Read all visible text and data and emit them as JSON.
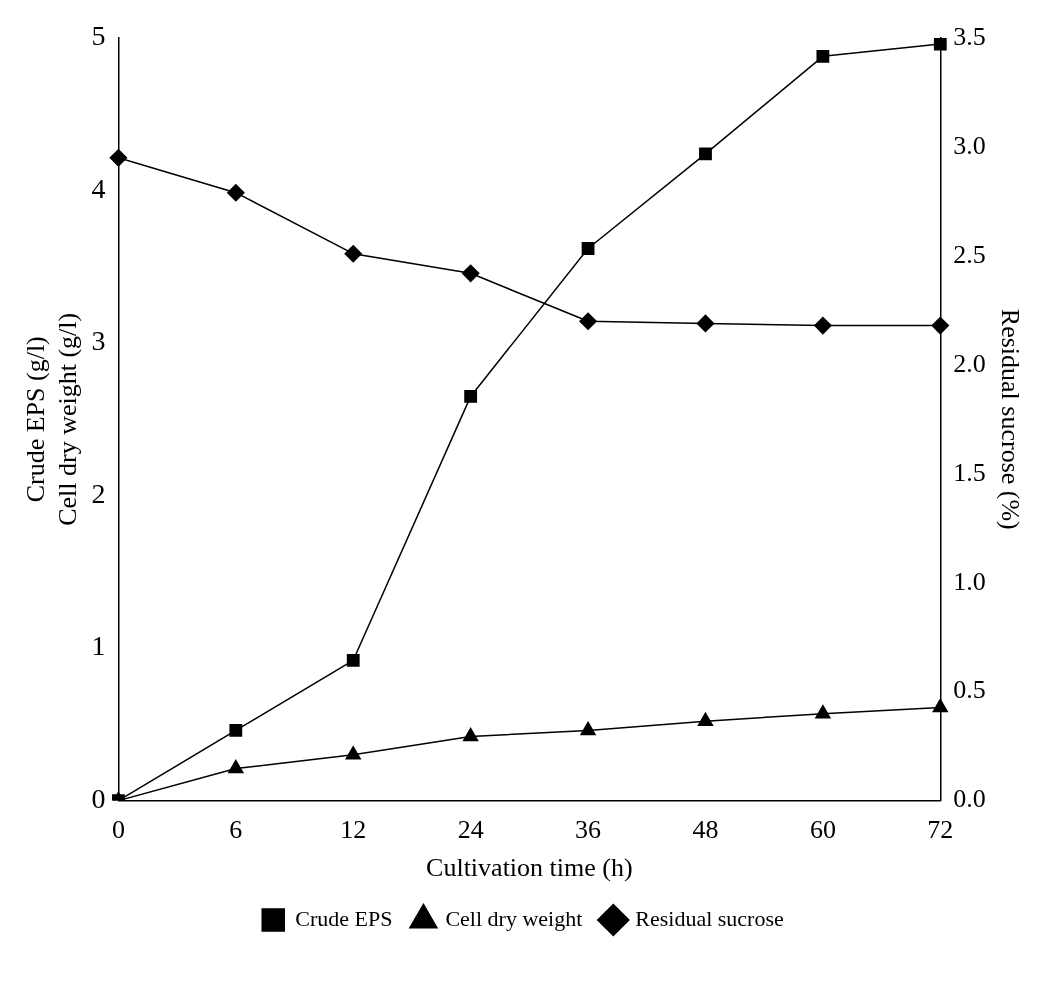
{
  "chart_data": {
    "type": "line",
    "xlabel": "Cultivation time (h)",
    "ylabel": "Crude EPS (g/l)\nCell dry weight (g/l)",
    "y2label": "Residual sucrose (%)",
    "categories": [
      "0",
      "6",
      "12",
      "24",
      "36",
      "48",
      "60",
      "72"
    ],
    "series": [
      {
        "name": "Crude EPS",
        "color": "#000000",
        "marker": "square",
        "values": [
          0,
          0.46,
          0.92,
          2.65,
          3.62,
          4.24,
          4.88,
          4.96
        ]
      },
      {
        "name": "Cell dry weight",
        "color": "#000000",
        "marker": "triangle",
        "values": [
          0,
          0.21,
          0.3,
          0.42,
          0.46,
          0.52,
          0.57,
          0.61
        ]
      },
      {
        "name": "Residual sucrose",
        "color": "#000000",
        "marker": "diamond",
        "axis": "y2",
        "values": [
          2.95,
          2.79,
          2.51,
          2.42,
          2.2,
          2.19,
          2.18,
          2.18
        ]
      }
    ],
    "ylim": [
      0,
      5
    ],
    "yticks": [
      0,
      1,
      2,
      3,
      4,
      5
    ],
    "y2lim": [
      0,
      3.5
    ],
    "y2ticks": [
      {
        "value": 0,
        "label": "0.0"
      },
      {
        "value": 0.5,
        "label": "0.5"
      },
      {
        "value": 1,
        "label": "1.0"
      },
      {
        "value": 1.5,
        "label": "1.5"
      },
      {
        "value": 2,
        "label": "2.0"
      },
      {
        "value": 2.5,
        "label": "2.5"
      },
      {
        "value": 3,
        "label": "3.0"
      },
      {
        "value": 3.5,
        "label": "3.5"
      }
    ],
    "grid": false,
    "legend": "bottom",
    "line_style": "solid"
  }
}
